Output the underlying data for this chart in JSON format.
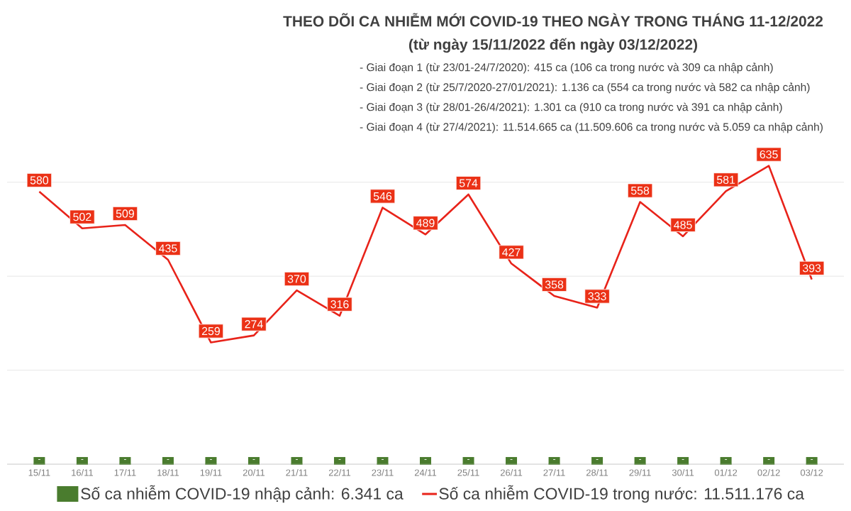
{
  "chart_data": {
    "type": "line",
    "title": "THEO DÕI CA NHIỄM MỚI COVID-19 THEO NGÀY TRONG THÁNG 11-12/2022",
    "subtitle": "(từ ngày 15/11/2022 đến ngày 03/12/2022)",
    "annotations": [
      "- Giai đoạn 1 (từ 23/01-24/7/2020): 415 ca (106 ca trong nước và 309 ca nhập cảnh)",
      "- Giai đoạn 2 (từ 25/7/2020-27/01/2021): 1.136 ca (554 ca trong nước và 582 ca nhập cảnh)",
      "- Giai đoạn 3 (từ 28/01-26/4/2021): 1.301 ca (910 ca trong nước và 391 ca nhập cảnh)",
      "- Giai đoạn 4 (từ 27/4/2021): 11.514.665 ca (11.509.606 ca trong nước và 5.059 ca nhập cảnh)"
    ],
    "categories": [
      "15/11",
      "16/11",
      "17/11",
      "18/11",
      "19/11",
      "20/11",
      "21/11",
      "22/11",
      "23/11",
      "24/11",
      "25/11",
      "26/11",
      "27/11",
      "28/11",
      "29/11",
      "30/11",
      "01/12",
      "02/12",
      "03/12"
    ],
    "series": [
      {
        "name": "Số ca nhiễm COVID-19 nhập cảnh: 6.341 ca",
        "type": "bar",
        "color": "#4a7c2e",
        "values": [
          0,
          0,
          0,
          0,
          0,
          0,
          0,
          0,
          0,
          0,
          0,
          0,
          0,
          0,
          0,
          0,
          0,
          0,
          0
        ],
        "value_labels": [
          "-",
          "-",
          "-",
          "-",
          "-",
          "-",
          "-",
          "-",
          "-",
          "-",
          "-",
          "-",
          "-",
          "-",
          "-",
          "-",
          "-",
          "-",
          "-"
        ]
      },
      {
        "name": "Số ca nhiễm COVID-19 trong nước: 11.511.176 ca",
        "color": "#e8231a",
        "values": [
          580,
          502,
          509,
          435,
          259,
          274,
          370,
          316,
          546,
          489,
          574,
          427,
          358,
          333,
          558,
          485,
          581,
          635,
          393
        ]
      }
    ],
    "data_labels": true,
    "yticks": [
      {
        "value": 0,
        "label": null
      },
      {
        "value": 200,
        "label": null
      },
      {
        "value": 400,
        "label": null
      },
      {
        "value": 600,
        "label": null
      }
    ],
    "tick_labels": "x",
    "grid": "y",
    "legend": "bottom"
  }
}
